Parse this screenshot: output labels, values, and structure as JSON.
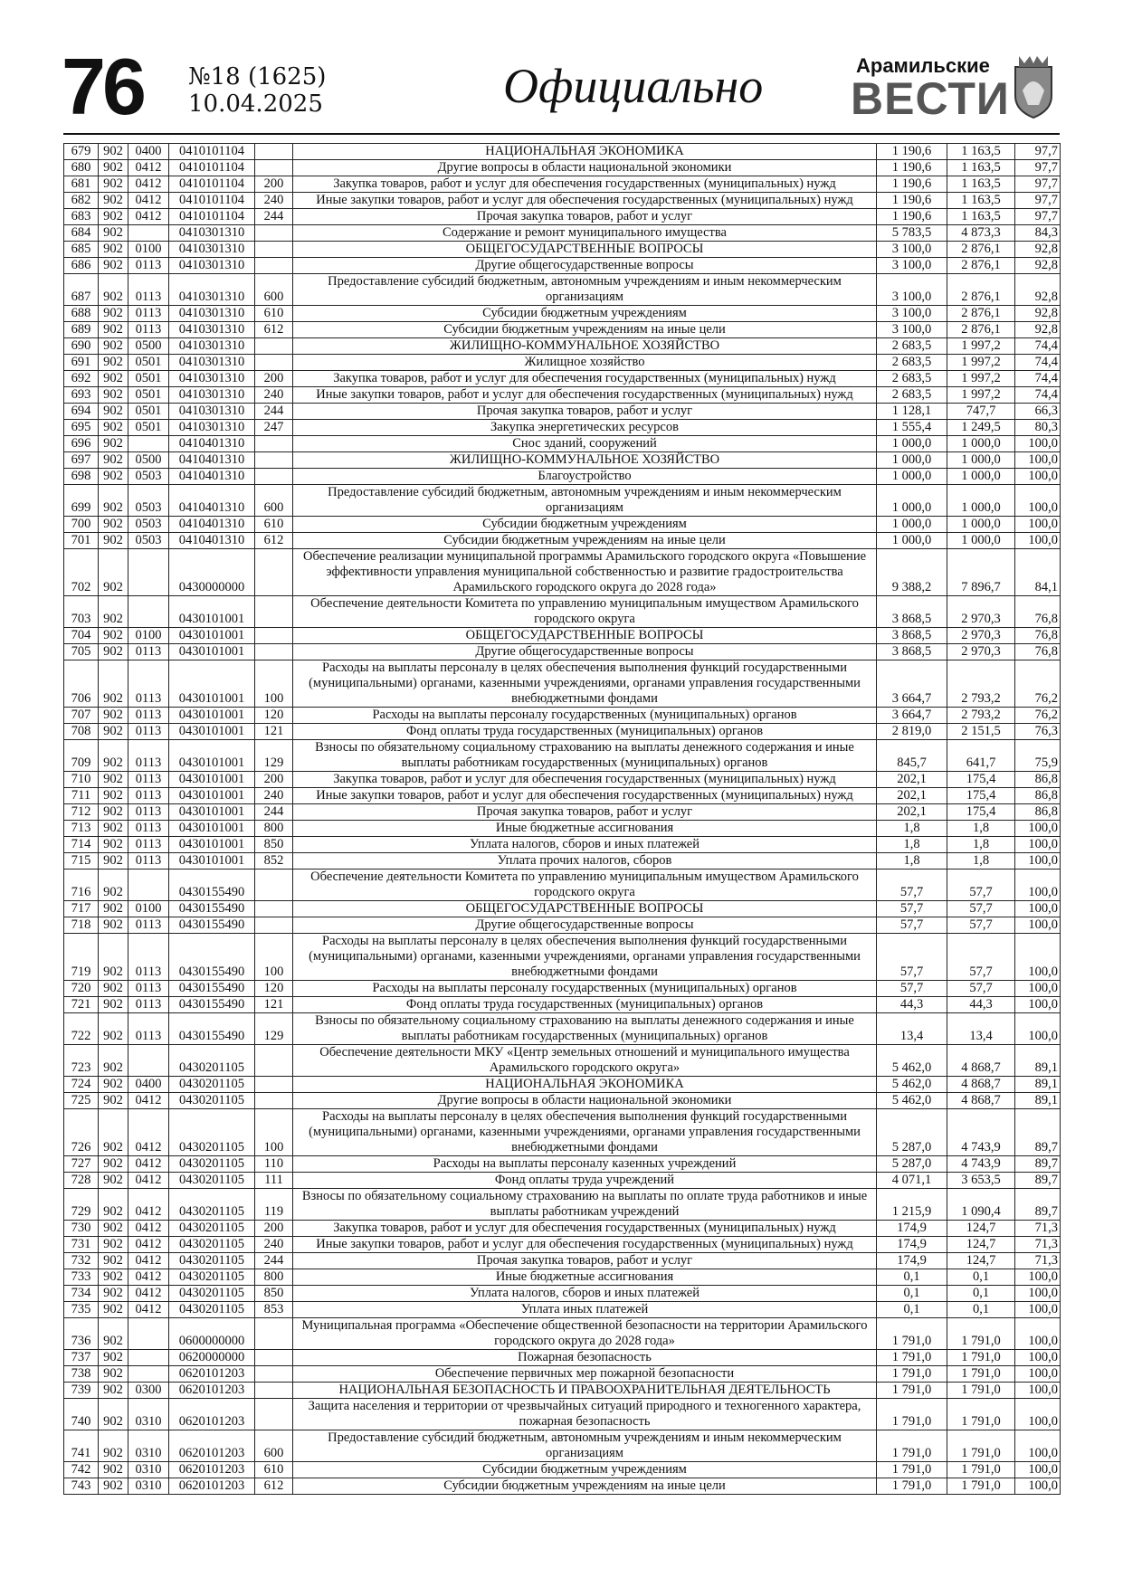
{
  "header": {
    "page_number": "76",
    "issue": "№18 (1625)",
    "date": "10.04.2025",
    "section": "Официально",
    "logo_top": "Арамильские",
    "logo_bottom": "ВЕСТИ"
  },
  "table": {
    "rows": [
      [
        "679",
        "902",
        "0400",
        "0410101104",
        null,
        "НАЦИОНАЛЬНАЯ ЭКОНОМИКА",
        "1 190,6",
        "1 163,5",
        "97,7"
      ],
      [
        "680",
        "902",
        "0412",
        "0410101104",
        null,
        "Другие вопросы в области национальной экономики",
        "1 190,6",
        "1 163,5",
        "97,7"
      ],
      [
        "681",
        "902",
        "0412",
        "0410101104",
        "200",
        "Закупка товаров, работ и услуг для обеспечения государственных (муниципальных) нужд",
        "1 190,6",
        "1 163,5",
        "97,7"
      ],
      [
        "682",
        "902",
        "0412",
        "0410101104",
        "240",
        "Иные закупки товаров, работ и услуг для обеспечения государственных (муниципальных) нужд",
        "1 190,6",
        "1 163,5",
        "97,7"
      ],
      [
        "683",
        "902",
        "0412",
        "0410101104",
        "244",
        "Прочая закупка товаров, работ и услуг",
        "1 190,6",
        "1 163,5",
        "97,7"
      ],
      [
        "684",
        "902",
        null,
        "0410301310",
        null,
        "Содержание и ремонт муниципального имущества",
        "5 783,5",
        "4 873,3",
        "84,3"
      ],
      [
        "685",
        "902",
        "0100",
        "0410301310",
        null,
        "ОБЩЕГОСУДАРСТВЕННЫЕ ВОПРОСЫ",
        "3 100,0",
        "2 876,1",
        "92,8"
      ],
      [
        "686",
        "902",
        "0113",
        "0410301310",
        null,
        "Другие общегосударственные вопросы",
        "3 100,0",
        "2 876,1",
        "92,8"
      ],
      [
        "687",
        "902",
        "0113",
        "0410301310",
        "600",
        "Предоставление субсидий бюджетным, автономным учреждениям и иным некоммерческим организациям",
        "3 100,0",
        "2 876,1",
        "92,8"
      ],
      [
        "688",
        "902",
        "0113",
        "0410301310",
        "610",
        "Субсидии бюджетным учреждениям",
        "3 100,0",
        "2 876,1",
        "92,8"
      ],
      [
        "689",
        "902",
        "0113",
        "0410301310",
        "612",
        "Субсидии бюджетным учреждениям на иные цели",
        "3 100,0",
        "2 876,1",
        "92,8"
      ],
      [
        "690",
        "902",
        "0500",
        "0410301310",
        null,
        "ЖИЛИЩНО-КОММУНАЛЬНОЕ ХОЗЯЙСТВО",
        "2 683,5",
        "1 997,2",
        "74,4"
      ],
      [
        "691",
        "902",
        "0501",
        "0410301310",
        null,
        "Жилищное хозяйство",
        "2 683,5",
        "1 997,2",
        "74,4"
      ],
      [
        "692",
        "902",
        "0501",
        "0410301310",
        "200",
        "Закупка товаров, работ и услуг для обеспечения государственных (муниципальных) нужд",
        "2 683,5",
        "1 997,2",
        "74,4"
      ],
      [
        "693",
        "902",
        "0501",
        "0410301310",
        "240",
        "Иные закупки товаров, работ и услуг для обеспечения государственных (муниципальных) нужд",
        "2 683,5",
        "1 997,2",
        "74,4"
      ],
      [
        "694",
        "902",
        "0501",
        "0410301310",
        "244",
        "Прочая закупка товаров, работ и услуг",
        "1 128,1",
        "747,7",
        "66,3"
      ],
      [
        "695",
        "902",
        "0501",
        "0410301310",
        "247",
        "Закупка энергетических ресурсов",
        "1 555,4",
        "1 249,5",
        "80,3"
      ],
      [
        "696",
        "902",
        null,
        "0410401310",
        null,
        "Снос зданий, сооружений",
        "1 000,0",
        "1 000,0",
        "100,0"
      ],
      [
        "697",
        "902",
        "0500",
        "0410401310",
        null,
        "ЖИЛИЩНО-КОММУНАЛЬНОЕ ХОЗЯЙСТВО",
        "1 000,0",
        "1 000,0",
        "100,0"
      ],
      [
        "698",
        "902",
        "0503",
        "0410401310",
        null,
        "Благоустройство",
        "1 000,0",
        "1 000,0",
        "100,0"
      ],
      [
        "699",
        "902",
        "0503",
        "0410401310",
        "600",
        "Предоставление субсидий бюджетным, автономным учреждениям и иным некоммерческим организациям",
        "1 000,0",
        "1 000,0",
        "100,0"
      ],
      [
        "700",
        "902",
        "0503",
        "0410401310",
        "610",
        "Субсидии бюджетным учреждениям",
        "1 000,0",
        "1 000,0",
        "100,0"
      ],
      [
        "701",
        "902",
        "0503",
        "0410401310",
        "612",
        "Субсидии бюджетным учреждениям на иные цели",
        "1 000,0",
        "1 000,0",
        "100,0"
      ],
      [
        "702",
        "902",
        null,
        "0430000000",
        null,
        "Обеспечение реализации муниципальной программы Арамильского городского округа «Повышение эффективности управления муниципальной собственностью и развитие градостроительства Арамильского городского округа до 2028 года»",
        "9 388,2",
        "7 896,7",
        "84,1"
      ],
      [
        "703",
        "902",
        null,
        "0430101001",
        null,
        "Обеспечение деятельности Комитета по управлению муниципальным имуществом Арамильского городского округа",
        "3 868,5",
        "2 970,3",
        "76,8"
      ],
      [
        "704",
        "902",
        "0100",
        "0430101001",
        null,
        "ОБЩЕГОСУДАРСТВЕННЫЕ ВОПРОСЫ",
        "3 868,5",
        "2 970,3",
        "76,8"
      ],
      [
        "705",
        "902",
        "0113",
        "0430101001",
        null,
        "Другие общегосударственные вопросы",
        "3 868,5",
        "2 970,3",
        "76,8"
      ],
      [
        "706",
        "902",
        "0113",
        "0430101001",
        "100",
        "Расходы на выплаты персоналу в целях обеспечения выполнения функций государственными (муниципальными) органами, казенными учреждениями, органами управления государственными внебюджетными фондами",
        "3 664,7",
        "2 793,2",
        "76,2"
      ],
      [
        "707",
        "902",
        "0113",
        "0430101001",
        "120",
        "Расходы на выплаты персоналу государственных (муниципальных) органов",
        "3 664,7",
        "2 793,2",
        "76,2"
      ],
      [
        "708",
        "902",
        "0113",
        "0430101001",
        "121",
        "Фонд оплаты труда государственных (муниципальных) органов",
        "2 819,0",
        "2 151,5",
        "76,3"
      ],
      [
        "709",
        "902",
        "0113",
        "0430101001",
        "129",
        "Взносы по обязательному социальному страхованию на выплаты денежного содержания и иные выплаты работникам государственных (муниципальных) органов",
        "845,7",
        "641,7",
        "75,9"
      ],
      [
        "710",
        "902",
        "0113",
        "0430101001",
        "200",
        "Закупка товаров, работ и услуг для обеспечения государственных (муниципальных) нужд",
        "202,1",
        "175,4",
        "86,8"
      ],
      [
        "711",
        "902",
        "0113",
        "0430101001",
        "240",
        "Иные закупки товаров, работ и услуг для обеспечения государственных (муниципальных) нужд",
        "202,1",
        "175,4",
        "86,8"
      ],
      [
        "712",
        "902",
        "0113",
        "0430101001",
        "244",
        "Прочая закупка товаров, работ и услуг",
        "202,1",
        "175,4",
        "86,8"
      ],
      [
        "713",
        "902",
        "0113",
        "0430101001",
        "800",
        "Иные бюджетные ассигнования",
        "1,8",
        "1,8",
        "100,0"
      ],
      [
        "714",
        "902",
        "0113",
        "0430101001",
        "850",
        "Уплата налогов, сборов и иных платежей",
        "1,8",
        "1,8",
        "100,0"
      ],
      [
        "715",
        "902",
        "0113",
        "0430101001",
        "852",
        "Уплата прочих налогов, сборов",
        "1,8",
        "1,8",
        "100,0"
      ],
      [
        "716",
        "902",
        null,
        "0430155490",
        null,
        "Обеспечение деятельности Комитета по управлению муниципальным имуществом Арамильского городского округа",
        "57,7",
        "57,7",
        "100,0"
      ],
      [
        "717",
        "902",
        "0100",
        "0430155490",
        null,
        "ОБЩЕГОСУДАРСТВЕННЫЕ ВОПРОСЫ",
        "57,7",
        "57,7",
        "100,0"
      ],
      [
        "718",
        "902",
        "0113",
        "0430155490",
        null,
        "Другие общегосударственные вопросы",
        "57,7",
        "57,7",
        "100,0"
      ],
      [
        "719",
        "902",
        "0113",
        "0430155490",
        "100",
        "Расходы на выплаты персоналу в целях обеспечения выполнения функций государственными (муниципальными) органами, казенными учреждениями, органами управления государственными внебюджетными фондами",
        "57,7",
        "57,7",
        "100,0"
      ],
      [
        "720",
        "902",
        "0113",
        "0430155490",
        "120",
        "Расходы на выплаты персоналу государственных (муниципальных) органов",
        "57,7",
        "57,7",
        "100,0"
      ],
      [
        "721",
        "902",
        "0113",
        "0430155490",
        "121",
        "Фонд оплаты труда государственных (муниципальных) органов",
        "44,3",
        "44,3",
        "100,0"
      ],
      [
        "722",
        "902",
        "0113",
        "0430155490",
        "129",
        "Взносы по обязательному социальному страхованию на выплаты денежного содержания и иные выплаты работникам государственных (муниципальных) органов",
        "13,4",
        "13,4",
        "100,0"
      ],
      [
        "723",
        "902",
        null,
        "0430201105",
        null,
        "Обеспечение деятельности МКУ «Центр земельных отношений и муниципального имущества Арамильского городского округа»",
        "5 462,0",
        "4 868,7",
        "89,1"
      ],
      [
        "724",
        "902",
        "0400",
        "0430201105",
        null,
        "НАЦИОНАЛЬНАЯ ЭКОНОМИКА",
        "5 462,0",
        "4 868,7",
        "89,1"
      ],
      [
        "725",
        "902",
        "0412",
        "0430201105",
        null,
        "Другие вопросы в области национальной экономики",
        "5 462,0",
        "4 868,7",
        "89,1"
      ],
      [
        "726",
        "902",
        "0412",
        "0430201105",
        "100",
        "Расходы на выплаты персоналу в целях обеспечения выполнения функций государственными (муниципальными) органами, казенными учреждениями, органами управления государственными внебюджетными фондами",
        "5 287,0",
        "4 743,9",
        "89,7"
      ],
      [
        "727",
        "902",
        "0412",
        "0430201105",
        "110",
        "Расходы на выплаты персоналу казенных учреждений",
        "5 287,0",
        "4 743,9",
        "89,7"
      ],
      [
        "728",
        "902",
        "0412",
        "0430201105",
        "111",
        "Фонд оплаты труда учреждений",
        "4 071,1",
        "3 653,5",
        "89,7"
      ],
      [
        "729",
        "902",
        "0412",
        "0430201105",
        "119",
        "Взносы по обязательному социальному страхованию на выплаты по оплате труда работников и иные выплаты работникам учреждений",
        "1 215,9",
        "1 090,4",
        "89,7"
      ],
      [
        "730",
        "902",
        "0412",
        "0430201105",
        "200",
        "Закупка товаров, работ и услуг для обеспечения государственных (муниципальных) нужд",
        "174,9",
        "124,7",
        "71,3"
      ],
      [
        "731",
        "902",
        "0412",
        "0430201105",
        "240",
        "Иные закупки товаров, работ и услуг для обеспечения государственных (муниципальных) нужд",
        "174,9",
        "124,7",
        "71,3"
      ],
      [
        "732",
        "902",
        "0412",
        "0430201105",
        "244",
        "Прочая закупка товаров, работ и услуг",
        "174,9",
        "124,7",
        "71,3"
      ],
      [
        "733",
        "902",
        "0412",
        "0430201105",
        "800",
        "Иные бюджетные ассигнования",
        "0,1",
        "0,1",
        "100,0"
      ],
      [
        "734",
        "902",
        "0412",
        "0430201105",
        "850",
        "Уплата налогов, сборов и иных платежей",
        "0,1",
        "0,1",
        "100,0"
      ],
      [
        "735",
        "902",
        "0412",
        "0430201105",
        "853",
        "Уплата иных платежей",
        "0,1",
        "0,1",
        "100,0"
      ],
      [
        "736",
        "902",
        null,
        "0600000000",
        null,
        "Муниципальная программа «Обеспечение общественной безопасности на территории Арамильского городского округа до 2028 года»",
        "1 791,0",
        "1 791,0",
        "100,0"
      ],
      [
        "737",
        "902",
        null,
        "0620000000",
        null,
        "Пожарная безопасность",
        "1 791,0",
        "1 791,0",
        "100,0"
      ],
      [
        "738",
        "902",
        null,
        "0620101203",
        null,
        "Обеспечение первичных мер пожарной безопасности",
        "1 791,0",
        "1 791,0",
        "100,0"
      ],
      [
        "739",
        "902",
        "0300",
        "0620101203",
        null,
        "НАЦИОНАЛЬНАЯ БЕЗОПАСНОСТЬ И ПРАВООХРАНИТЕЛЬНАЯ ДЕЯТЕЛЬНОСТЬ",
        "1 791,0",
        "1 791,0",
        "100,0"
      ],
      [
        "740",
        "902",
        "0310",
        "0620101203",
        null,
        "Защита населения и территории от чрезвычайных ситуаций природного и техногенного характера, пожарная безопасность",
        "1 791,0",
        "1 791,0",
        "100,0"
      ],
      [
        "741",
        "902",
        "0310",
        "0620101203",
        "600",
        "Предоставление субсидий бюджетным, автономным учреждениям и иным некоммерческим организациям",
        "1 791,0",
        "1 791,0",
        "100,0"
      ],
      [
        "742",
        "902",
        "0310",
        "0620101203",
        "610",
        "Субсидии бюджетным учреждениям",
        "1 791,0",
        "1 791,0",
        "100,0"
      ],
      [
        "743",
        "902",
        "0310",
        "0620101203",
        "612",
        "Субсидии бюджетным учреждениям на иные цели",
        "1 791,0",
        "1 791,0",
        "100,0"
      ]
    ]
  }
}
